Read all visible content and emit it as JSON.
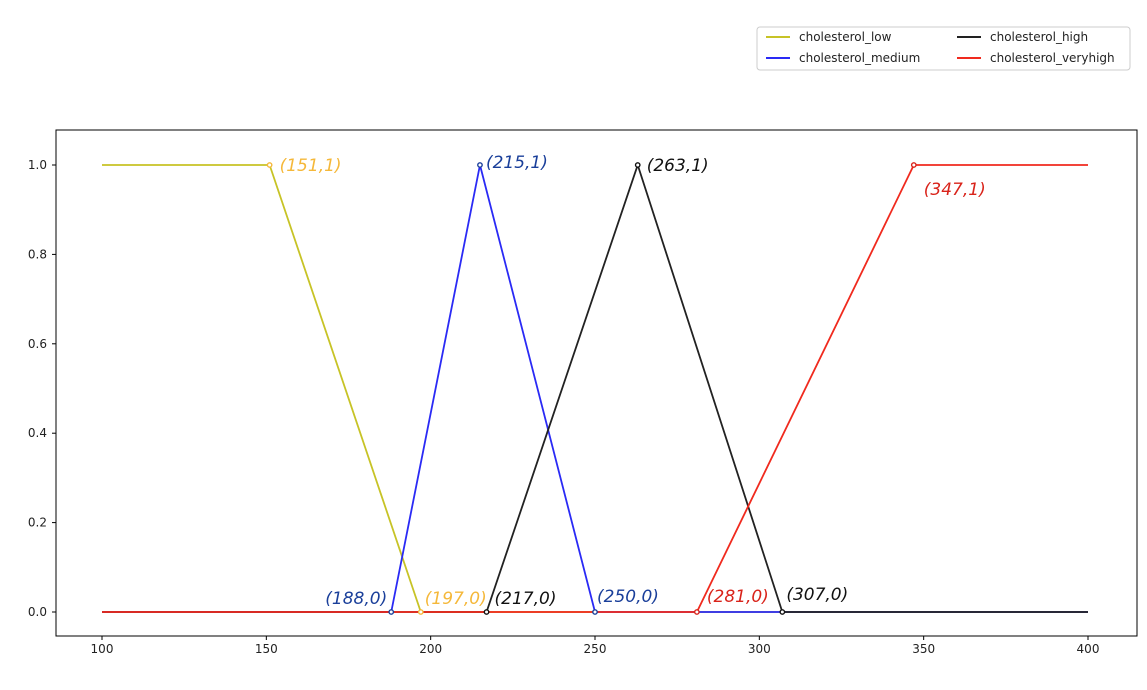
{
  "chart_data": {
    "type": "line",
    "title": "",
    "xlabel": "",
    "ylabel": "",
    "xlim": [
      100,
      400
    ],
    "ylim": [
      0,
      1
    ],
    "x_ticks": [
      100,
      150,
      200,
      250,
      300,
      350,
      400
    ],
    "y_ticks": [
      0.0,
      0.2,
      0.4,
      0.6,
      0.8,
      1.0
    ],
    "x_tick_labels": [
      "100",
      "150",
      "200",
      "250",
      "300",
      "350",
      "400"
    ],
    "y_tick_labels": [
      "0.0",
      "0.2",
      "0.4",
      "0.6",
      "0.8",
      "1.0"
    ],
    "grid": false,
    "legend_position": "top-right, above plot",
    "series": [
      {
        "name": "cholesterol_low",
        "color": "#c7c326",
        "points": [
          [
            100,
            1
          ],
          [
            151,
            1
          ],
          [
            197,
            0
          ],
          [
            400,
            0
          ]
        ]
      },
      {
        "name": "cholesterol_medium",
        "color": "#2a2af5",
        "points": [
          [
            100,
            0
          ],
          [
            188,
            0
          ],
          [
            215,
            1
          ],
          [
            250,
            0
          ],
          [
            400,
            0
          ]
        ]
      },
      {
        "name": "cholesterol_high",
        "color": "#222222",
        "points": [
          [
            100,
            0
          ],
          [
            217,
            0
          ],
          [
            263,
            1
          ],
          [
            307,
            0
          ],
          [
            400,
            0
          ]
        ]
      },
      {
        "name": "cholesterol_veryhigh",
        "color": "#f02a1e",
        "points": [
          [
            100,
            0
          ],
          [
            281,
            0
          ],
          [
            347,
            1
          ],
          [
            400,
            1
          ]
        ]
      }
    ],
    "annotations": [
      {
        "text": "(151,1)",
        "x": 151,
        "y": 1,
        "color": "#f5b83a"
      },
      {
        "text": "(215,1)",
        "x": 215,
        "y": 1,
        "color": "#1a3f9a"
      },
      {
        "text": "(263,1)",
        "x": 263,
        "y": 1,
        "color": "#111111"
      },
      {
        "text": "(347,1)",
        "x": 347,
        "y": 1,
        "color": "#d9231a"
      },
      {
        "text": "(188,0)",
        "x": 188,
        "y": 0,
        "color": "#1a3f9a"
      },
      {
        "text": "(197,0)",
        "x": 197,
        "y": 0,
        "color": "#f5b83a"
      },
      {
        "text": "(217,0)",
        "x": 217,
        "y": 0,
        "color": "#111111"
      },
      {
        "text": "(250,0)",
        "x": 250,
        "y": 0,
        "color": "#1a3f9a"
      },
      {
        "text": "(281,0)",
        "x": 281,
        "y": 0,
        "color": "#d9231a"
      },
      {
        "text": "(307,0)",
        "x": 307,
        "y": 0,
        "color": "#111111"
      }
    ]
  }
}
